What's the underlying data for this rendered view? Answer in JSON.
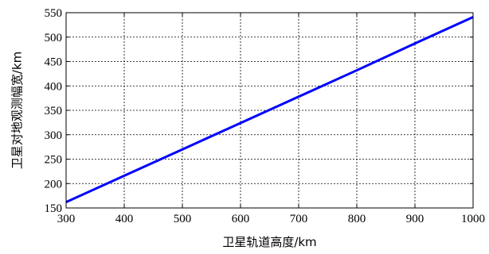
{
  "chart_data": {
    "type": "line",
    "xlabel": "卫星轨道高度/km",
    "ylabel": "卫星对地观测幅宽/km",
    "xlim": [
      300,
      1000
    ],
    "ylim": [
      150,
      550
    ],
    "xticks": [
      300,
      400,
      500,
      600,
      700,
      800,
      900,
      1000
    ],
    "yticks": [
      150,
      200,
      250,
      300,
      350,
      400,
      450,
      500,
      550
    ],
    "grid": true,
    "series": [
      {
        "color": "#0000ff",
        "x": [
          300,
          400,
          500,
          600,
          700,
          800,
          900,
          1000
        ],
        "y": [
          162,
          216,
          270,
          324,
          378,
          432,
          487,
          541
        ]
      }
    ]
  }
}
